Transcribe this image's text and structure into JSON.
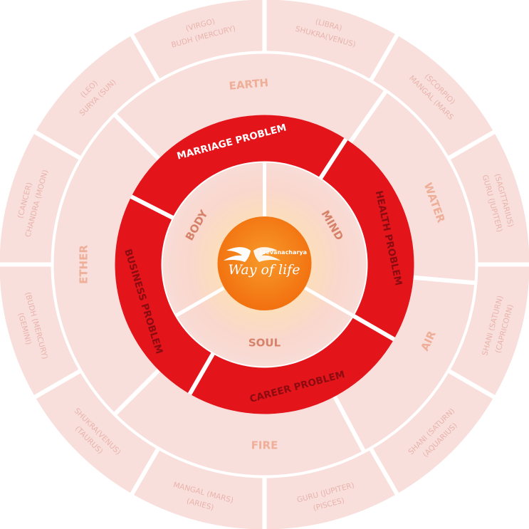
{
  "zodiac_ring": {
    "color_fill": "#f8dfdb",
    "color_text": "#e9b3ac",
    "signs": [
      {
        "sign": "(VIRGO)",
        "ruler": "BUDH (MERCURY)"
      },
      {
        "sign": "(LIBRA)",
        "ruler": "SHUKRA(VENUS)"
      },
      {
        "sign": "(SCORPIO)",
        "ruler": "MANGAL (MARS"
      },
      {
        "sign": "(SAGITTARIUS)",
        "ruler": "GURU (JUPITER)"
      },
      {
        "sign": "SHANI (SATURN)",
        "ruler": "(CAPRICORN)"
      },
      {
        "sign": "SHANI (SATURN)",
        "ruler": "(AQUARIUS)"
      },
      {
        "sign": "GURU (JUPITER)",
        "ruler": "(PISCES)"
      },
      {
        "sign": "MANGAL (MARS)",
        "ruler": "(ARIES)"
      },
      {
        "sign": "SHUKRA(VENUS)",
        "ruler": "(TAURUS)"
      },
      {
        "sign": "(BUDH (MERCURY)",
        "ruler": "(GEMINI)"
      },
      {
        "sign": "(CANCER)",
        "ruler": "CHANDRA (MOON)"
      },
      {
        "sign": "(LEO)",
        "ruler": "SURYA (SUN)"
      }
    ]
  },
  "element_ring": {
    "color_fill": "#f8dfdb",
    "color_text": "#eeae98",
    "elements": [
      {
        "label": "EARTH"
      },
      {
        "label": "WATER"
      },
      {
        "label": "AIR"
      },
      {
        "label": "FIRE"
      },
      {
        "label": "ETHER"
      }
    ]
  },
  "problem_ring": {
    "color_fill": "#e4141b",
    "color_text_light": "#ffffff",
    "color_text_dark": "#8b0c10",
    "problems": [
      {
        "label": "MARRIAGE PROBLEM"
      },
      {
        "label": "HEALTH PROBLEM"
      },
      {
        "label": "CAREER PROBLEM"
      },
      {
        "label": "BUSINESS PROBLEM"
      }
    ]
  },
  "aspect_ring": {
    "color_text": "#d6826a",
    "aspects": [
      {
        "label": "BODY"
      },
      {
        "label": "MIND"
      },
      {
        "label": "SOUL"
      }
    ]
  },
  "logo": {
    "color_fill": "#f47a17",
    "color_text": "#ffffff",
    "brand_small": "Jeevanacharya",
    "brand_big": "Way of life"
  }
}
